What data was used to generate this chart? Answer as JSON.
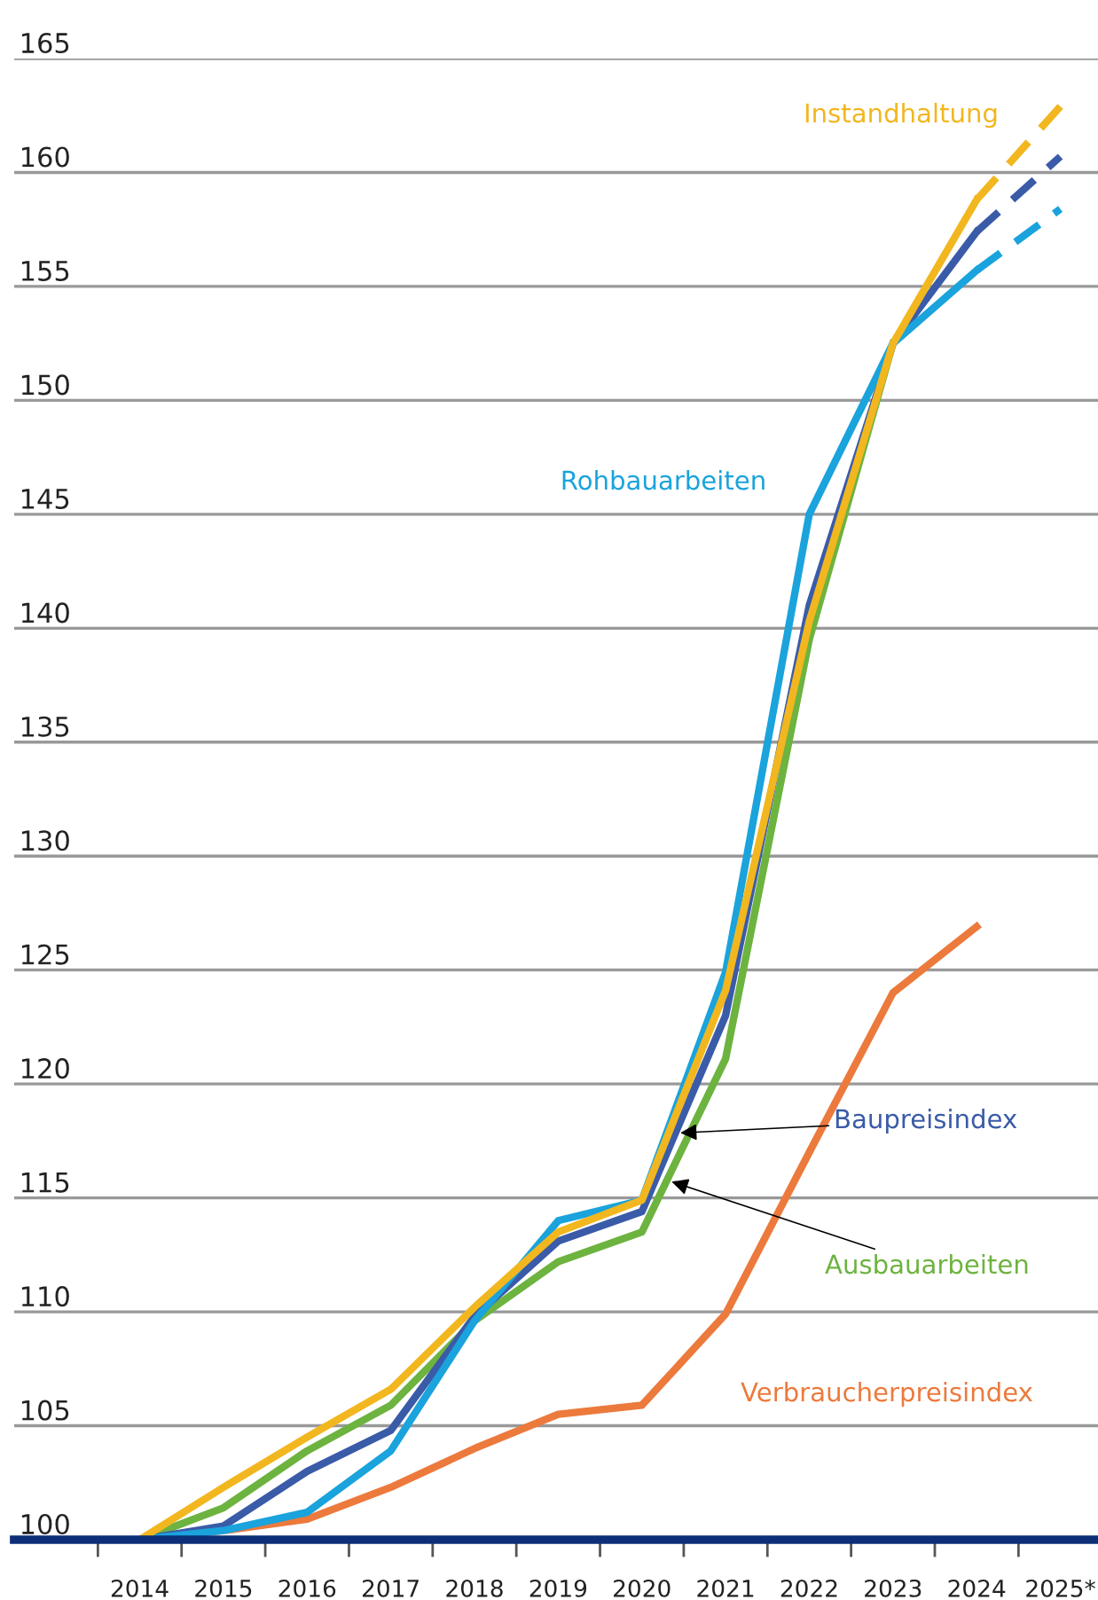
{
  "chart_data": {
    "type": "line",
    "x": [
      2014,
      2015,
      2016,
      2017,
      2018,
      2019,
      2020,
      2021,
      2022,
      2023,
      2024,
      2025
    ],
    "series": [
      {
        "name": "Verbraucherpreisindex",
        "color": "#ec7a3c",
        "values": [
          100,
          100.4,
          100.9,
          102.3,
          104.0,
          105.5,
          105.9,
          109.9,
          117.0,
          124.0,
          126.9,
          null
        ]
      },
      {
        "name": "Ausbauarbeiten",
        "color": "#6db33f",
        "values": [
          100,
          101.4,
          103.9,
          105.9,
          109.6,
          112.2,
          113.5,
          121.1,
          139.5,
          152.5,
          null,
          null
        ]
      },
      {
        "name": "Baupreisindex",
        "color": "#3a5ba8",
        "values": [
          100,
          100.6,
          103.0,
          104.8,
          109.8,
          113.1,
          114.4,
          123.0,
          141.0,
          152.5,
          157.4,
          null
        ]
      },
      {
        "name": "Rohbauarbeiten",
        "color": "#1aa3dc",
        "values": [
          100,
          100.4,
          101.2,
          103.9,
          109.6,
          114.0,
          114.9,
          124.9,
          145.0,
          152.5,
          155.7,
          null
        ]
      },
      {
        "name": "Instandhaltung",
        "color": "#f2b71f",
        "values": [
          100,
          102.3,
          104.5,
          106.6,
          110.2,
          113.5,
          114.9,
          124.1,
          140.3,
          152.5,
          158.8,
          null
        ]
      },
      {
        "color": "#1aa3dc",
        "values": [
          null,
          null,
          null,
          null,
          null,
          null,
          null,
          null,
          null,
          null,
          155.7,
          158.4
        ],
        "line_style": "dashed"
      },
      {
        "color": "#3a5ba8",
        "values": [
          null,
          null,
          null,
          null,
          null,
          null,
          null,
          null,
          null,
          null,
          157.4,
          160.7
        ],
        "line_style": "dashed"
      },
      {
        "color": "#f2b71f",
        "values": [
          null,
          null,
          null,
          null,
          null,
          null,
          null,
          null,
          null,
          null,
          158.8,
          162.9
        ],
        "line_style": "dashed"
      }
    ],
    "xlim": [
      2012.5,
      2025.45
    ],
    "xticks": [
      {
        "value": 2013.5,
        "label": null
      },
      2014,
      {
        "value": 2014.5,
        "label": null
      },
      2015,
      {
        "value": 2015.5,
        "label": null
      },
      2016,
      {
        "value": 2016.5,
        "label": null
      },
      2017,
      {
        "value": 2017.5,
        "label": null
      },
      2018,
      {
        "value": 2018.5,
        "label": null
      },
      2019,
      {
        "value": 2019.5,
        "label": null
      },
      2020,
      {
        "value": 2020.5,
        "label": null
      },
      2021,
      {
        "value": 2021.5,
        "label": null
      },
      2022,
      {
        "value": 2022.5,
        "label": null
      },
      2023,
      {
        "value": 2023.5,
        "label": null
      },
      2024,
      {
        "value": 2024.5,
        "label": null
      },
      {
        "value": 2025,
        "label": "2025*"
      }
    ],
    "ylim": [
      100,
      165
    ],
    "yticks": [
      100,
      105,
      110,
      115,
      120,
      125,
      130,
      135,
      140,
      145,
      150,
      155,
      160,
      165
    ],
    "grid": "y",
    "line_style": "solid",
    "legend": false
  }
}
